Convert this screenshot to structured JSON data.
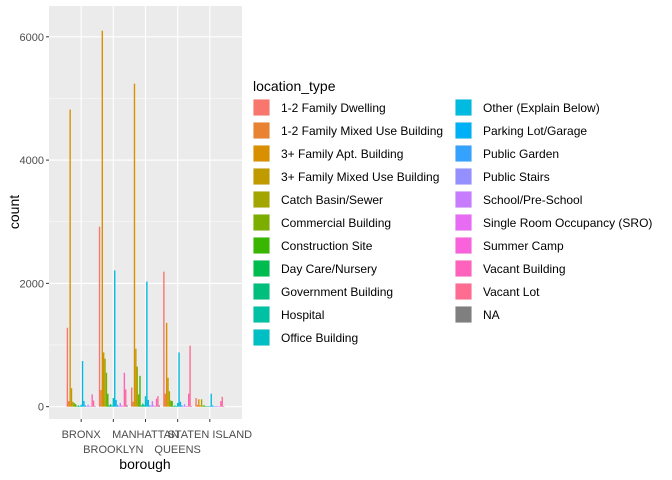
{
  "chart_data": {
    "type": "bar",
    "xlabel": "borough",
    "ylabel": "count",
    "ylim": [
      -200,
      6500
    ],
    "y_ticks": [
      0,
      2000,
      4000,
      6000
    ],
    "grid": true,
    "legend_position": "right",
    "legend_title": "location_type",
    "categories": [
      "BRONX",
      "BROOKLYN",
      "MANHATTAN",
      "QUEENS",
      "STATEN ISLAND"
    ],
    "series": [
      {
        "name": "1-2 Family Dwelling",
        "color": "#F8766D",
        "values": [
          1280,
          2920,
          310,
          2190,
          140
        ]
      },
      {
        "name": "1-2 Family Mixed Use Building",
        "color": "#EA8331",
        "values": [
          90,
          270,
          80,
          210,
          30
        ]
      },
      {
        "name": "3+ Family Apt. Building",
        "color": "#D89000",
        "values": [
          4820,
          6100,
          5240,
          1360,
          120
        ]
      },
      {
        "name": "3+ Family Mixed Use Building",
        "color": "#C09B00",
        "values": [
          300,
          880,
          940,
          470,
          20
        ]
      },
      {
        "name": "Catch Basin/Sewer",
        "color": "#A3A500",
        "values": [
          80,
          780,
          650,
          250,
          120
        ]
      },
      {
        "name": "Commercial Building",
        "color": "#7CAE00",
        "values": [
          60,
          550,
          200,
          100,
          20
        ]
      },
      {
        "name": "Construction Site",
        "color": "#39B600",
        "values": [
          40,
          210,
          500,
          90,
          20
        ]
      },
      {
        "name": "Day Care/Nursery",
        "color": "#00BB4E",
        "values": [
          10,
          20,
          20,
          10,
          5
        ]
      },
      {
        "name": "Government Building",
        "color": "#00BF7D",
        "values": [
          20,
          40,
          50,
          20,
          5
        ]
      },
      {
        "name": "Hospital",
        "color": "#00C1A3",
        "values": [
          10,
          20,
          30,
          10,
          5
        ]
      },
      {
        "name": "Office Building",
        "color": "#00BFC4",
        "values": [
          30,
          140,
          170,
          60,
          10
        ]
      },
      {
        "name": "Other (Explain Below)",
        "color": "#00BAE0",
        "values": [
          740,
          2210,
          2030,
          880,
          210
        ]
      },
      {
        "name": "Parking Lot/Garage",
        "color": "#00B0F6",
        "values": [
          90,
          110,
          110,
          80,
          20
        ]
      },
      {
        "name": "Public Garden",
        "color": "#35A2FF",
        "values": [
          20,
          30,
          20,
          20,
          5
        ]
      },
      {
        "name": "Public Stairs",
        "color": "#9590FF",
        "values": [
          5,
          10,
          20,
          5,
          5
        ]
      },
      {
        "name": "School/Pre-School",
        "color": "#C77CFF",
        "values": [
          30,
          60,
          90,
          40,
          10
        ]
      },
      {
        "name": "Single Room Occupancy (SRO)",
        "color": "#E76BF3",
        "values": [
          10,
          20,
          20,
          10,
          5
        ]
      },
      {
        "name": "Summer Camp",
        "color": "#FA62DB",
        "values": [
          5,
          10,
          10,
          5,
          5
        ]
      },
      {
        "name": "Vacant Building",
        "color": "#FF62BC",
        "values": [
          200,
          550,
          130,
          210,
          90
        ]
      },
      {
        "name": "Vacant Lot",
        "color": "#FF6C91",
        "values": [
          100,
          280,
          170,
          990,
          160
        ]
      },
      {
        "name": "NA",
        "color": "#7F7F7F",
        "values": [
          10,
          20,
          20,
          10,
          5
        ]
      }
    ]
  }
}
